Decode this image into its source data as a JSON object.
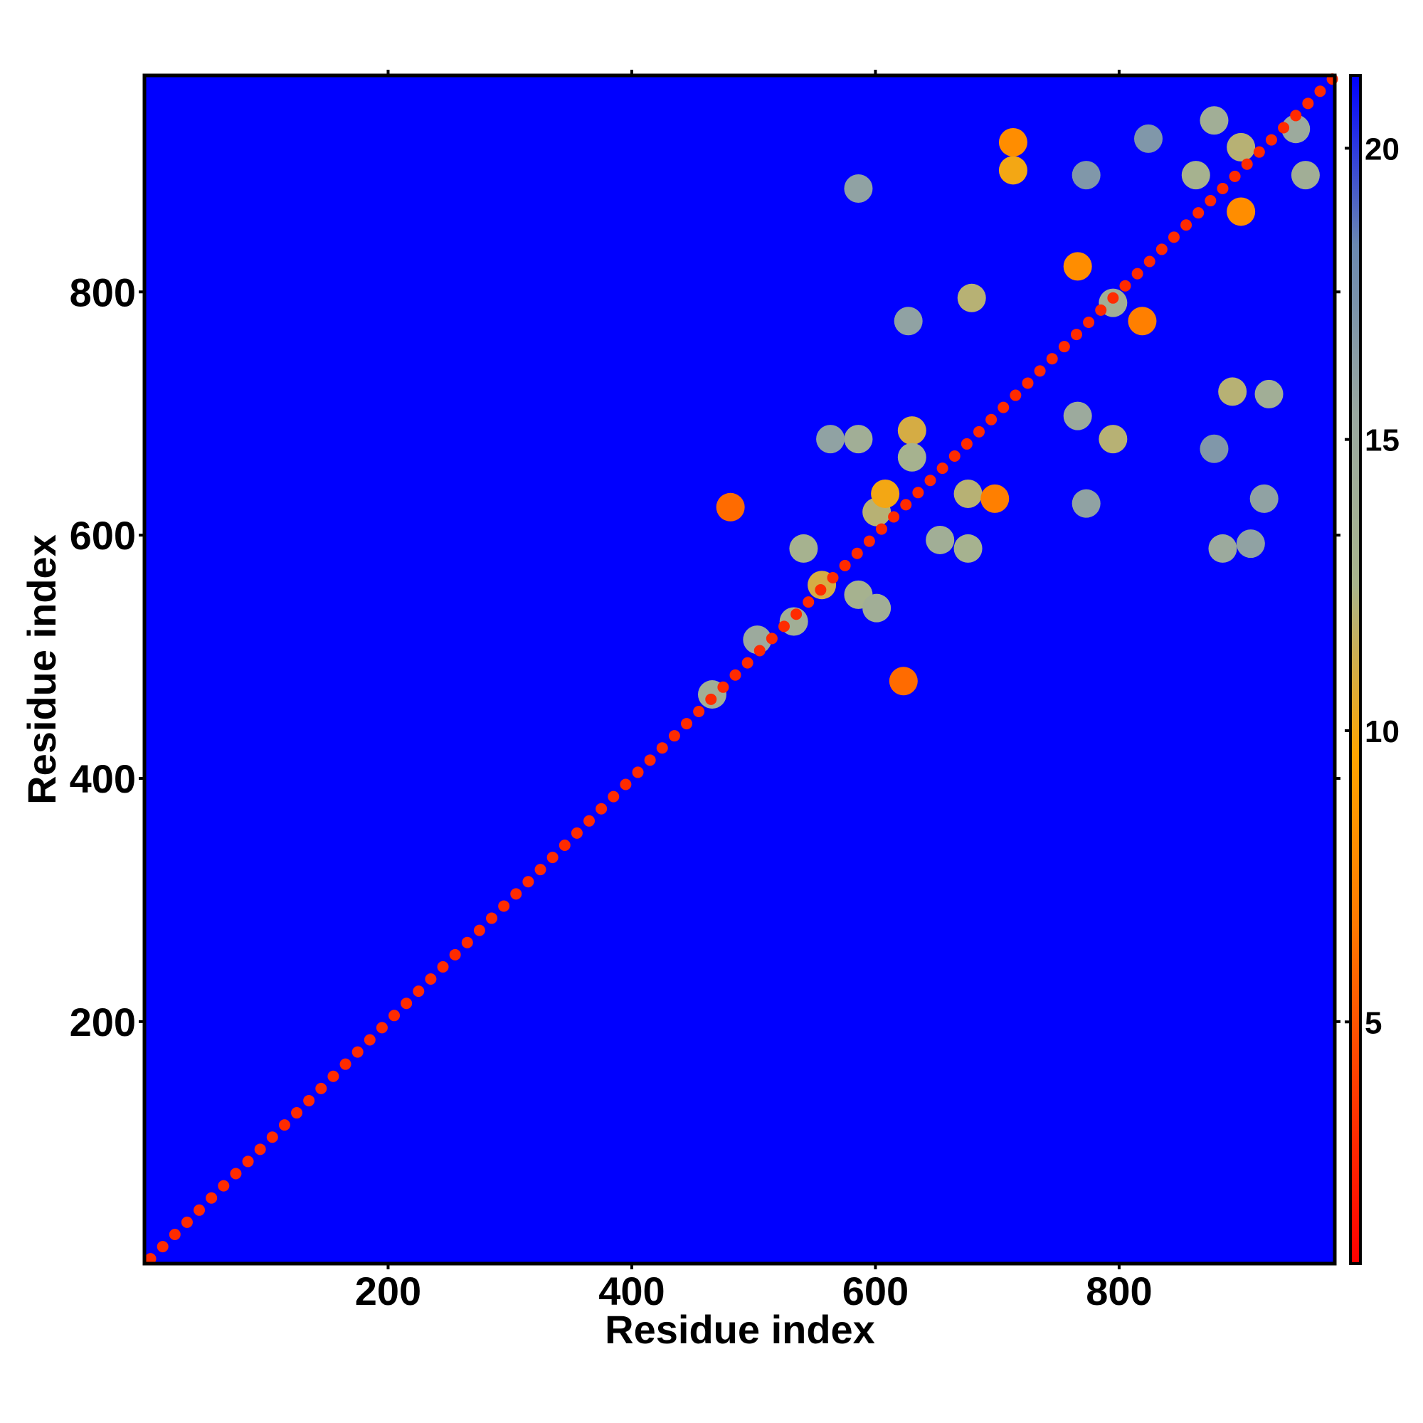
{
  "chart_data": {
    "type": "heatmap",
    "xlabel": "Residue index",
    "ylabel": "Residue index",
    "xlim": [
      0,
      977
    ],
    "ylim": [
      1,
      978
    ],
    "xticks": [
      200,
      400,
      600,
      800
    ],
    "yticks": [
      200,
      400,
      600,
      800
    ],
    "clim": [
      0.85,
      21.25
    ],
    "cticks": [
      5,
      10,
      15,
      20
    ],
    "colors": [
      "#ff0000",
      "#ff3a00",
      "#ff7a00",
      "#ffa500",
      "#a8b48c",
      "#9aa8a0",
      "#6a88b0",
      "#0000ff"
    ],
    "diagonal": {
      "x": [
        5,
        15,
        25,
        35,
        45,
        55,
        65,
        75,
        85,
        95,
        105,
        115,
        125,
        135,
        145,
        155,
        165,
        175,
        185,
        195,
        205,
        215,
        225,
        235,
        245,
        255,
        265,
        275,
        285,
        295,
        305,
        315,
        325,
        335,
        345,
        355,
        365,
        375,
        385,
        395,
        405,
        415,
        425,
        435,
        445,
        455,
        465,
        475,
        485,
        495,
        505,
        515,
        525,
        535,
        545,
        555,
        565,
        575,
        585,
        595,
        605,
        615,
        625,
        635,
        645,
        655,
        665,
        675,
        685,
        695,
        705,
        715,
        725,
        735,
        745,
        755,
        765,
        775,
        785,
        795,
        805,
        815,
        825,
        835,
        845,
        855,
        865,
        875,
        885,
        895,
        905,
        915,
        925,
        935,
        945,
        955,
        965,
        975
      ],
      "y": [
        5,
        15,
        25,
        35,
        45,
        55,
        65,
        75,
        85,
        95,
        105,
        115,
        125,
        135,
        145,
        155,
        165,
        175,
        185,
        195,
        205,
        215,
        225,
        235,
        245,
        255,
        265,
        275,
        285,
        295,
        305,
        315,
        325,
        335,
        345,
        355,
        365,
        375,
        385,
        395,
        405,
        415,
        425,
        435,
        445,
        455,
        465,
        475,
        485,
        495,
        505,
        515,
        525,
        535,
        545,
        555,
        565,
        575,
        585,
        595,
        605,
        615,
        625,
        635,
        645,
        655,
        665,
        675,
        685,
        695,
        705,
        715,
        725,
        735,
        745,
        755,
        765,
        775,
        785,
        795,
        805,
        815,
        825,
        835,
        845,
        855,
        865,
        875,
        885,
        895,
        905,
        915,
        925,
        935,
        945,
        955,
        965,
        975
      ],
      "values": [
        3,
        3,
        3,
        3,
        3,
        3,
        3,
        3,
        3,
        3,
        3,
        3,
        3,
        3,
        3,
        3,
        3,
        3,
        3,
        3,
        3,
        3,
        3,
        3,
        3,
        3,
        3,
        3,
        3,
        3,
        3,
        3,
        3,
        3,
        3,
        3,
        3,
        3,
        3,
        3,
        3,
        3,
        3,
        3,
        3,
        3,
        3,
        3,
        3,
        3,
        3,
        3,
        3,
        3,
        3,
        3,
        3,
        3,
        3,
        3,
        3,
        3,
        3,
        3,
        3,
        3,
        3,
        3,
        3,
        3,
        3,
        3,
        3,
        3,
        3,
        3,
        3,
        3,
        3,
        3,
        3,
        3,
        3,
        3,
        3,
        3,
        3,
        3,
        3,
        3,
        3,
        3,
        3,
        3,
        3,
        3,
        3,
        3
      ]
    },
    "contacts": {
      "x": [
        923,
        893,
        885,
        908,
        919,
        773,
        795,
        766,
        679,
        627,
        713,
        713,
        586,
        676,
        698,
        676,
        630,
        630,
        586,
        563,
        601,
        608,
        653,
        541,
        556,
        586,
        601,
        533,
        481,
        623,
        466,
        503,
        900,
        878,
        945,
        953,
        863,
        900,
        795,
        819,
        766,
        824,
        773,
        878
      ],
      "y": [
        716,
        718,
        589,
        593,
        630,
        626,
        679,
        698,
        795,
        776,
        900,
        923,
        885,
        634,
        630,
        589,
        686,
        664,
        679,
        679,
        619,
        634,
        596,
        589,
        559,
        551,
        540,
        529,
        623,
        480,
        469,
        514,
        919,
        941,
        934,
        896,
        896,
        866,
        791,
        776,
        821,
        926,
        896,
        671
      ],
      "values": [
        14,
        12,
        15,
        16,
        16,
        16,
        12,
        15,
        12,
        16,
        10,
        8,
        16,
        12,
        7,
        13,
        11,
        13,
        14,
        16,
        12,
        10,
        14,
        13,
        11,
        13,
        14,
        14,
        6,
        6,
        14,
        15,
        12,
        14,
        15,
        14,
        13,
        8,
        14,
        7,
        8,
        17,
        17,
        17
      ]
    }
  }
}
